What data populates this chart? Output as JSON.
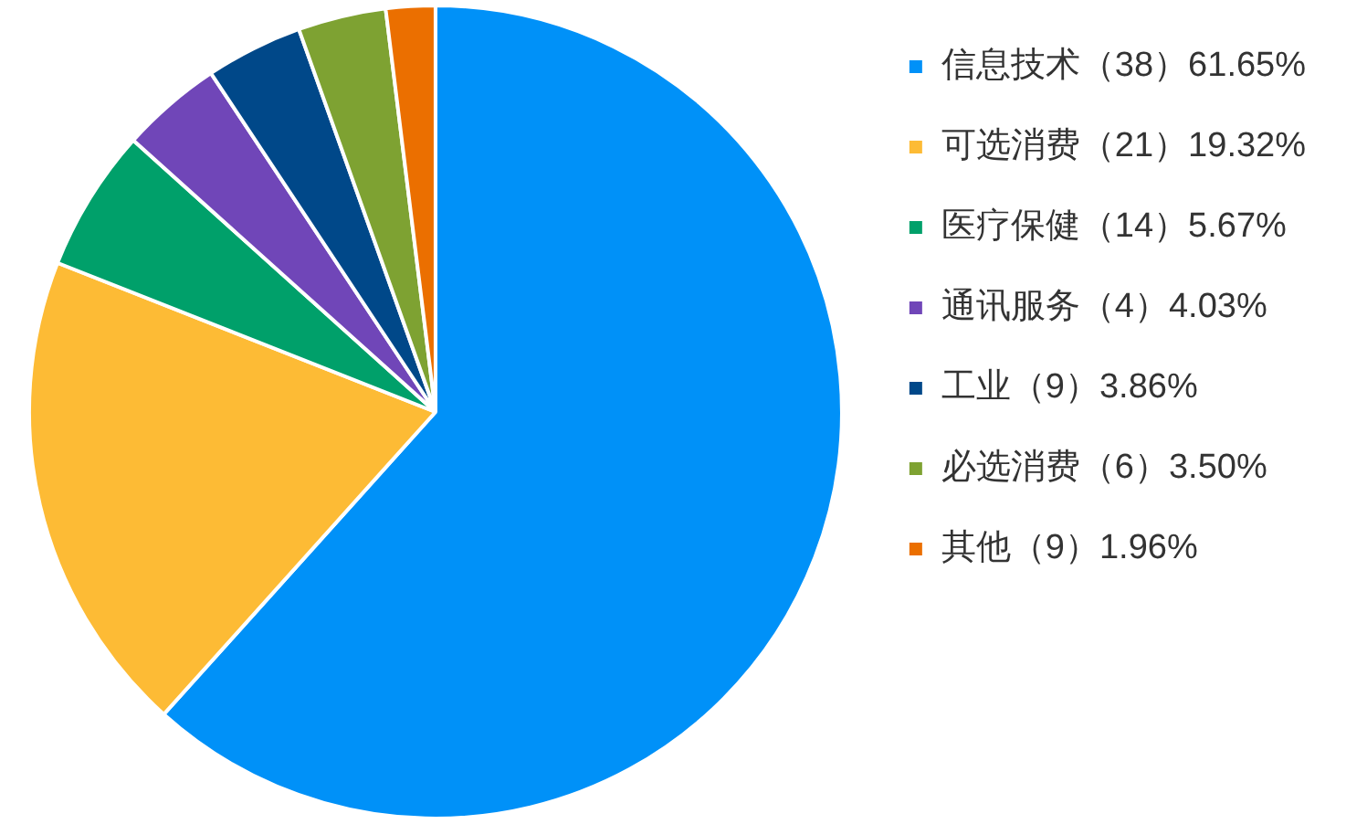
{
  "chart_data": {
    "type": "pie",
    "categories": [
      "信息技术（38）61.65%",
      "可选消费（21）19.32%",
      "医疗保健（14）5.67%",
      "通讯服务（4）4.03%",
      "工业（9）3.86%",
      "必选消费（6）3.50%",
      "其他（9）1.96%"
    ],
    "values": [
      61.65,
      19.32,
      5.67,
      4.03,
      3.86,
      3.5,
      1.96
    ],
    "colors": [
      "#0091f8",
      "#fdbb35",
      "#00a06a",
      "#7046b8",
      "#004889",
      "#7ea232",
      "#eb6f00"
    ],
    "legend": "right"
  }
}
